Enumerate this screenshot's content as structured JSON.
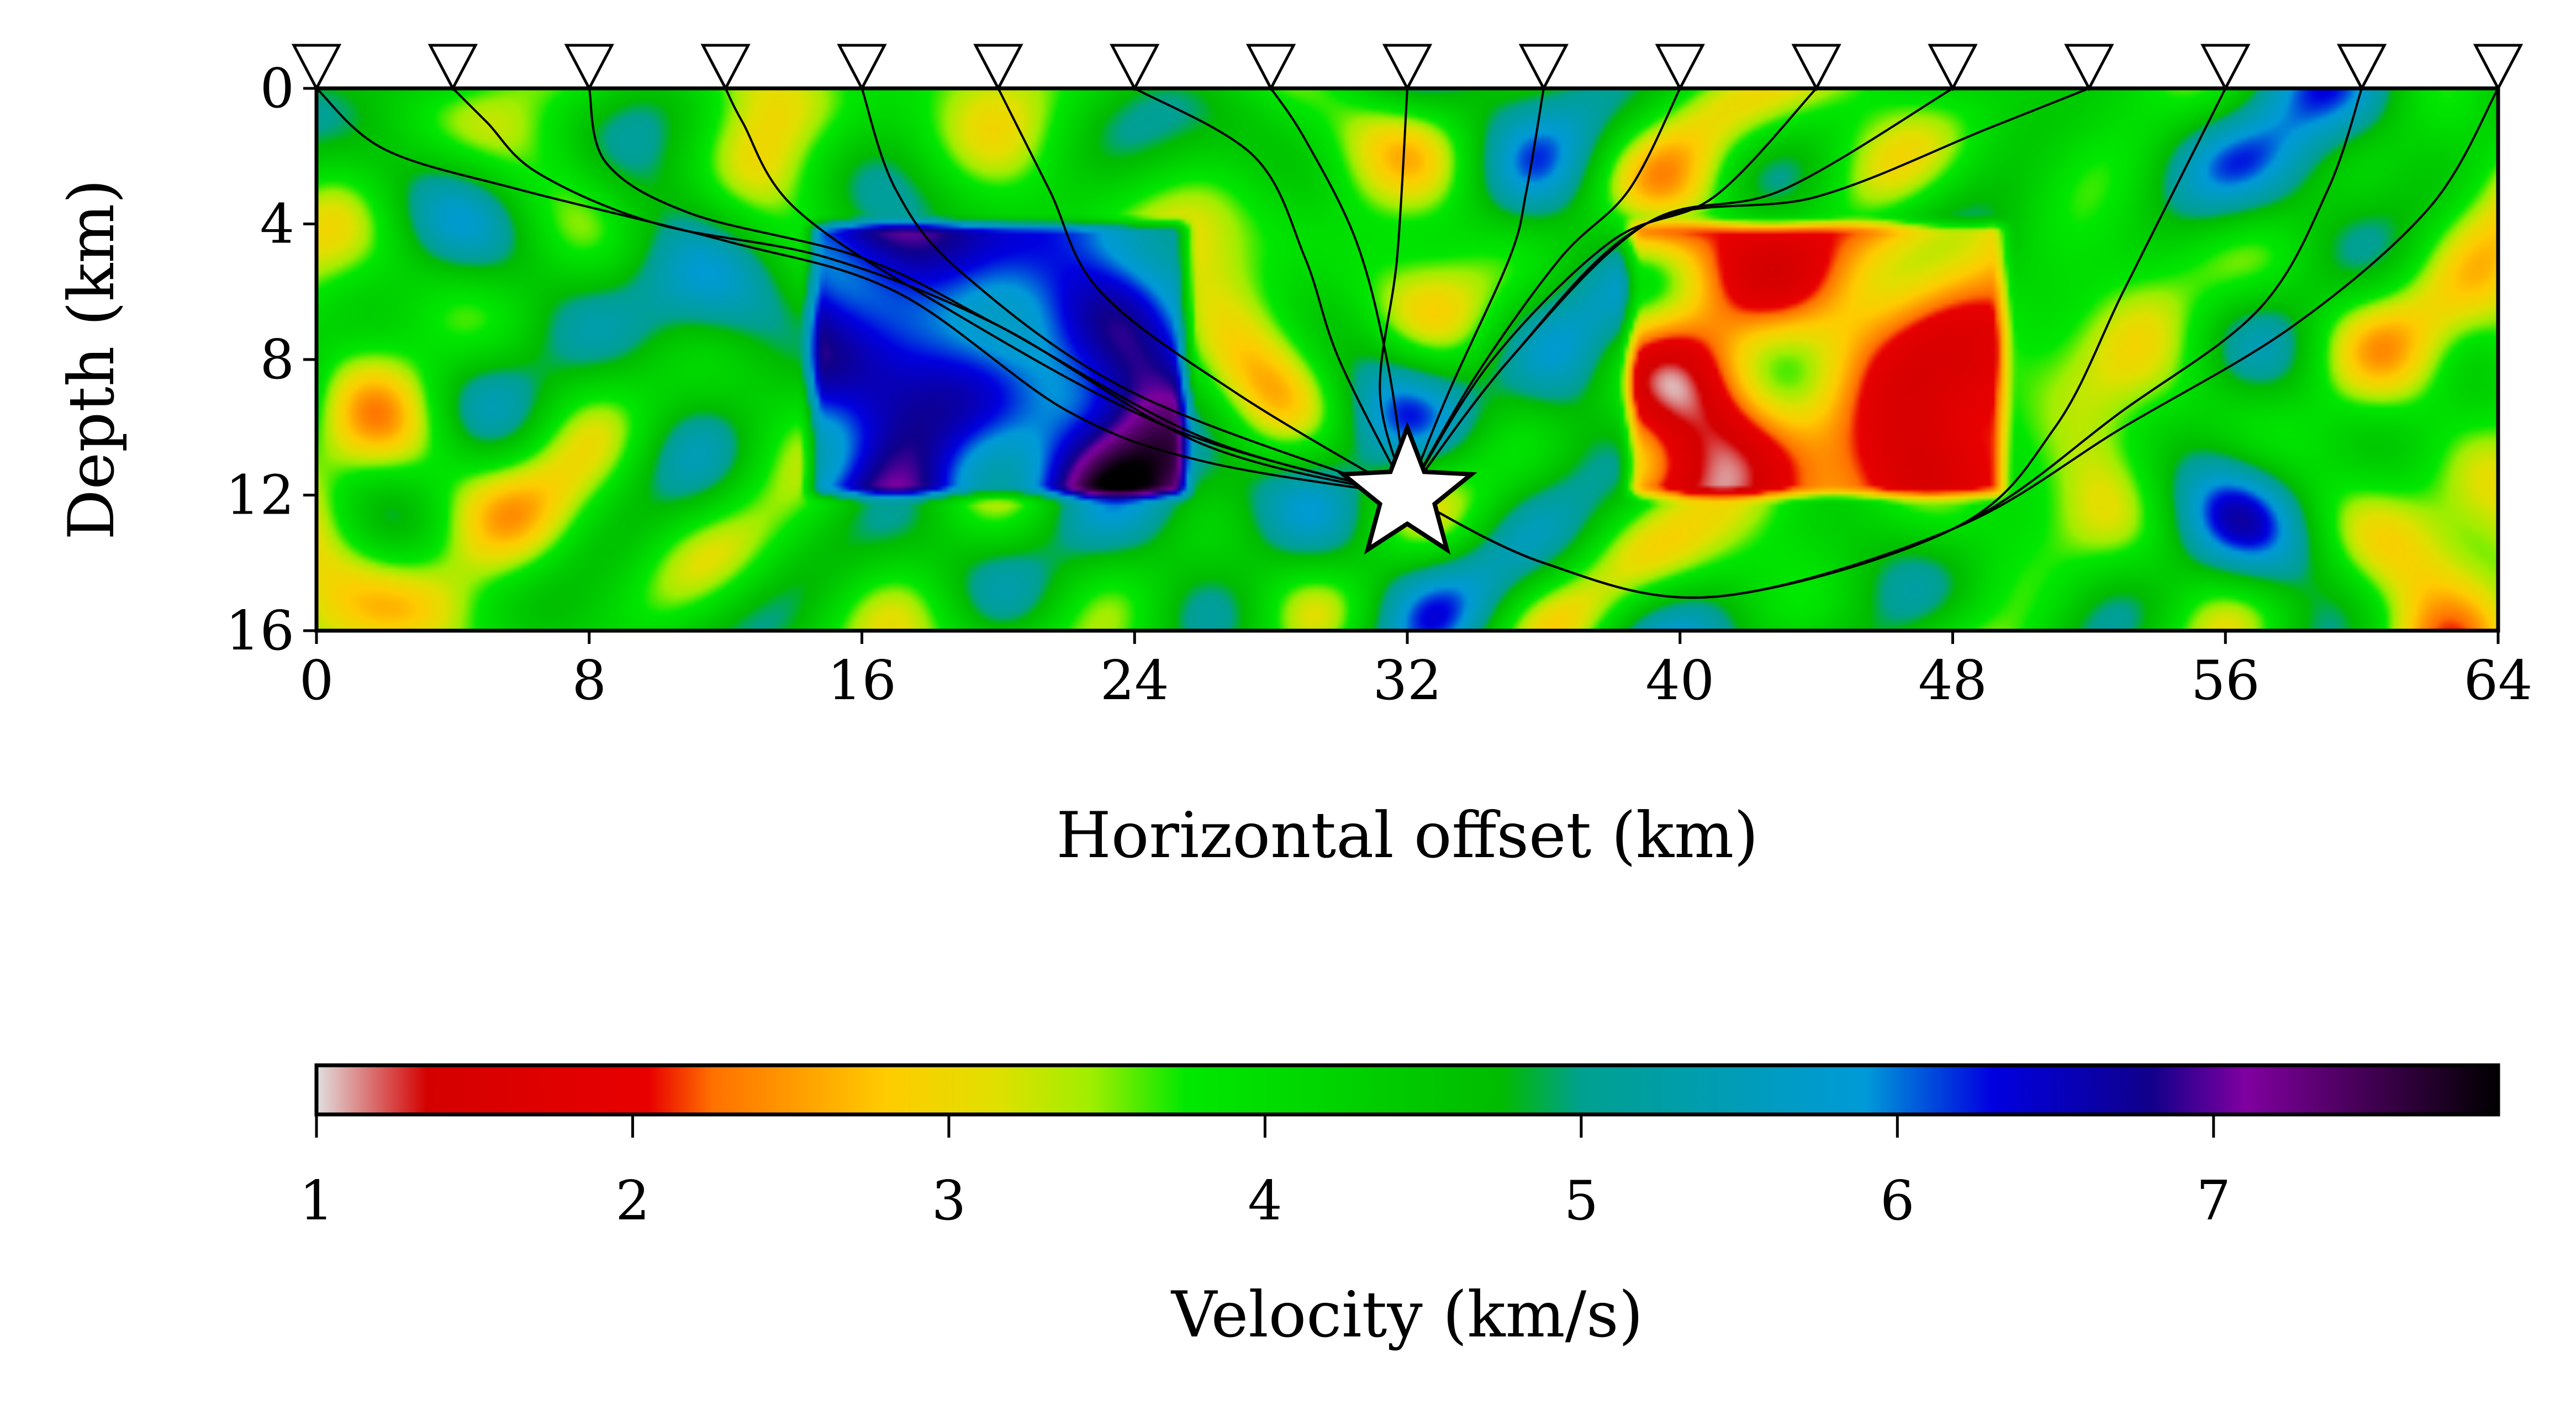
{
  "chart_data": [
    {
      "type": "heatmap",
      "title": "",
      "xlabel": "Horizontal offset (km)",
      "ylabel": "Depth (km)",
      "xlim": [
        0,
        64
      ],
      "ylim": [
        16,
        0
      ],
      "xticks": [
        0,
        8,
        16,
        24,
        32,
        40,
        48,
        56,
        64
      ],
      "xtick_labels": [
        "0",
        "8",
        "16",
        "24",
        "32",
        "40",
        "48",
        "56",
        "64"
      ],
      "yticks": [
        0,
        4,
        8,
        12,
        16
      ],
      "ytick_labels": [
        "0",
        "4",
        "8",
        "12",
        "16"
      ],
      "grid": false,
      "background_velocity_km_s": 4.2,
      "anomalies": [
        {
          "name": "high-velocity block",
          "x_range": [
            14.5,
            25.5
          ],
          "depth_range": [
            4,
            12
          ],
          "velocity_km_s": 6.3
        },
        {
          "name": "low-velocity block",
          "x_range": [
            38.5,
            49.5
          ],
          "depth_range": [
            4,
            12
          ],
          "velocity_km_s": 2.4
        }
      ],
      "receivers_x_km": [
        0,
        4,
        8,
        12,
        16,
        20,
        24,
        28,
        32,
        36,
        40,
        44,
        48,
        52,
        56,
        60,
        64
      ],
      "receiver_depth_km": 0,
      "source": {
        "x_km": 32,
        "depth_km": 12
      },
      "ray_paths": [
        {
          "receiver_x_km": 0,
          "points": [
            [
              32,
              12
            ],
            [
              26,
              11
            ],
            [
              22,
              9.5
            ],
            [
              17,
              6
            ],
            [
              12,
              4.5
            ],
            [
              6,
              3
            ],
            [
              2,
              1.8
            ],
            [
              0,
              0
            ]
          ]
        },
        {
          "receiver_x_km": 4,
          "points": [
            [
              32,
              12
            ],
            [
              26,
              10.5
            ],
            [
              20,
              7
            ],
            [
              15,
              5
            ],
            [
              10,
              4
            ],
            [
              6.5,
              2.5
            ],
            [
              5,
              1
            ],
            [
              4,
              0
            ]
          ]
        },
        {
          "receiver_x_km": 8,
          "points": [
            [
              32,
              12
            ],
            [
              26,
              10.3
            ],
            [
              20,
              7
            ],
            [
              16,
              5
            ],
            [
              11,
              3.7
            ],
            [
              8.5,
              2.2
            ],
            [
              8,
              0
            ]
          ]
        },
        {
          "receiver_x_km": 12,
          "points": [
            [
              32,
              12
            ],
            [
              25,
              10
            ],
            [
              18,
              6.2
            ],
            [
              14,
              3.5
            ],
            [
              12.5,
              1
            ],
            [
              12,
              0
            ]
          ]
        },
        {
          "receiver_x_km": 16,
          "points": [
            [
              32,
              12
            ],
            [
              24,
              9
            ],
            [
              19,
              5.5
            ],
            [
              17,
              3
            ],
            [
              16,
              0
            ]
          ]
        },
        {
          "receiver_x_km": 20,
          "points": [
            [
              32,
              12
            ],
            [
              27,
              9
            ],
            [
              23,
              6
            ],
            [
              21.5,
              3
            ],
            [
              20,
              0
            ]
          ]
        },
        {
          "receiver_x_km": 24,
          "points": [
            [
              32,
              12
            ],
            [
              30,
              8
            ],
            [
              29,
              5
            ],
            [
              27.5,
              2
            ],
            [
              24,
              0
            ]
          ]
        },
        {
          "receiver_x_km": 28,
          "points": [
            [
              32,
              12
            ],
            [
              31.4,
              8
            ],
            [
              30.5,
              4.5
            ],
            [
              29,
              1.5
            ],
            [
              28,
              0
            ]
          ]
        },
        {
          "receiver_x_km": 32,
          "points": [
            [
              32,
              12
            ],
            [
              31.2,
              9
            ],
            [
              31.7,
              5
            ],
            [
              32,
              0
            ]
          ]
        },
        {
          "receiver_x_km": 36,
          "points": [
            [
              32,
              12
            ],
            [
              33.2,
              9
            ],
            [
              35,
              5
            ],
            [
              35.5,
              3
            ],
            [
              36,
              0
            ]
          ]
        },
        {
          "receiver_x_km": 40,
          "points": [
            [
              32,
              12
            ],
            [
              34,
              8.5
            ],
            [
              36.5,
              5
            ],
            [
              38.5,
              3
            ],
            [
              40,
              0
            ]
          ]
        },
        {
          "receiver_x_km": 44,
          "points": [
            [
              32,
              12
            ],
            [
              34.5,
              8
            ],
            [
              38,
              4.5
            ],
            [
              41,
              3.2
            ],
            [
              44,
              0
            ]
          ]
        },
        {
          "receiver_x_km": 48,
          "points": [
            [
              32,
              12
            ],
            [
              35,
              8
            ],
            [
              39,
              4
            ],
            [
              43,
              3
            ],
            [
              48,
              0
            ]
          ]
        },
        {
          "receiver_x_km": 52,
          "points": [
            [
              32,
              12
            ],
            [
              35,
              8
            ],
            [
              39,
              4
            ],
            [
              44,
              3.2
            ],
            [
              49,
              1.2
            ],
            [
              52,
              0
            ]
          ]
        },
        {
          "receiver_x_km": 56,
          "points": [
            [
              32,
              12
            ],
            [
              36,
              14
            ],
            [
              41,
              15
            ],
            [
              48,
              13
            ],
            [
              51,
              10
            ],
            [
              53,
              6
            ],
            [
              55,
              2
            ],
            [
              56,
              0
            ]
          ]
        },
        {
          "receiver_x_km": 60,
          "points": [
            [
              32,
              12
            ],
            [
              36,
              14
            ],
            [
              41,
              15
            ],
            [
              48,
              13
            ],
            [
              53,
              9.5
            ],
            [
              57,
              6.5
            ],
            [
              59,
              3
            ],
            [
              60,
              0
            ]
          ]
        },
        {
          "receiver_x_km": 64,
          "points": [
            [
              32,
              12
            ],
            [
              36,
              14
            ],
            [
              41,
              15
            ],
            [
              48,
              13
            ],
            [
              53,
              10
            ],
            [
              58,
              7
            ],
            [
              62,
              3.5
            ],
            [
              64,
              0
            ]
          ]
        }
      ]
    },
    {
      "type": "colorbar",
      "label": "Velocity (km/s)",
      "range": [
        1,
        7.9
      ],
      "ticks": [
        1,
        2,
        3,
        4,
        5,
        6,
        7
      ],
      "tick_labels": [
        "1",
        "2",
        "3",
        "4",
        "5",
        "6",
        "7"
      ],
      "orientation": "horizontal",
      "colormap_stops": [
        {
          "value": 1.0,
          "color": "#e0e0e0"
        },
        {
          "value": 1.35,
          "color": "#d40000"
        },
        {
          "value": 2.05,
          "color": "#e80000"
        },
        {
          "value": 2.25,
          "color": "#ff7000"
        },
        {
          "value": 2.8,
          "color": "#ffcc00"
        },
        {
          "value": 3.15,
          "color": "#e0e000"
        },
        {
          "value": 3.45,
          "color": "#a0ee00"
        },
        {
          "value": 3.75,
          "color": "#00e800"
        },
        {
          "value": 4.75,
          "color": "#00bb00"
        },
        {
          "value": 5.0,
          "color": "#00a090"
        },
        {
          "value": 5.9,
          "color": "#009ad8"
        },
        {
          "value": 6.3,
          "color": "#0000e0"
        },
        {
          "value": 6.8,
          "color": "#10008a"
        },
        {
          "value": 7.1,
          "color": "#8000a0"
        },
        {
          "value": 7.9,
          "color": "#000000"
        }
      ]
    }
  ]
}
